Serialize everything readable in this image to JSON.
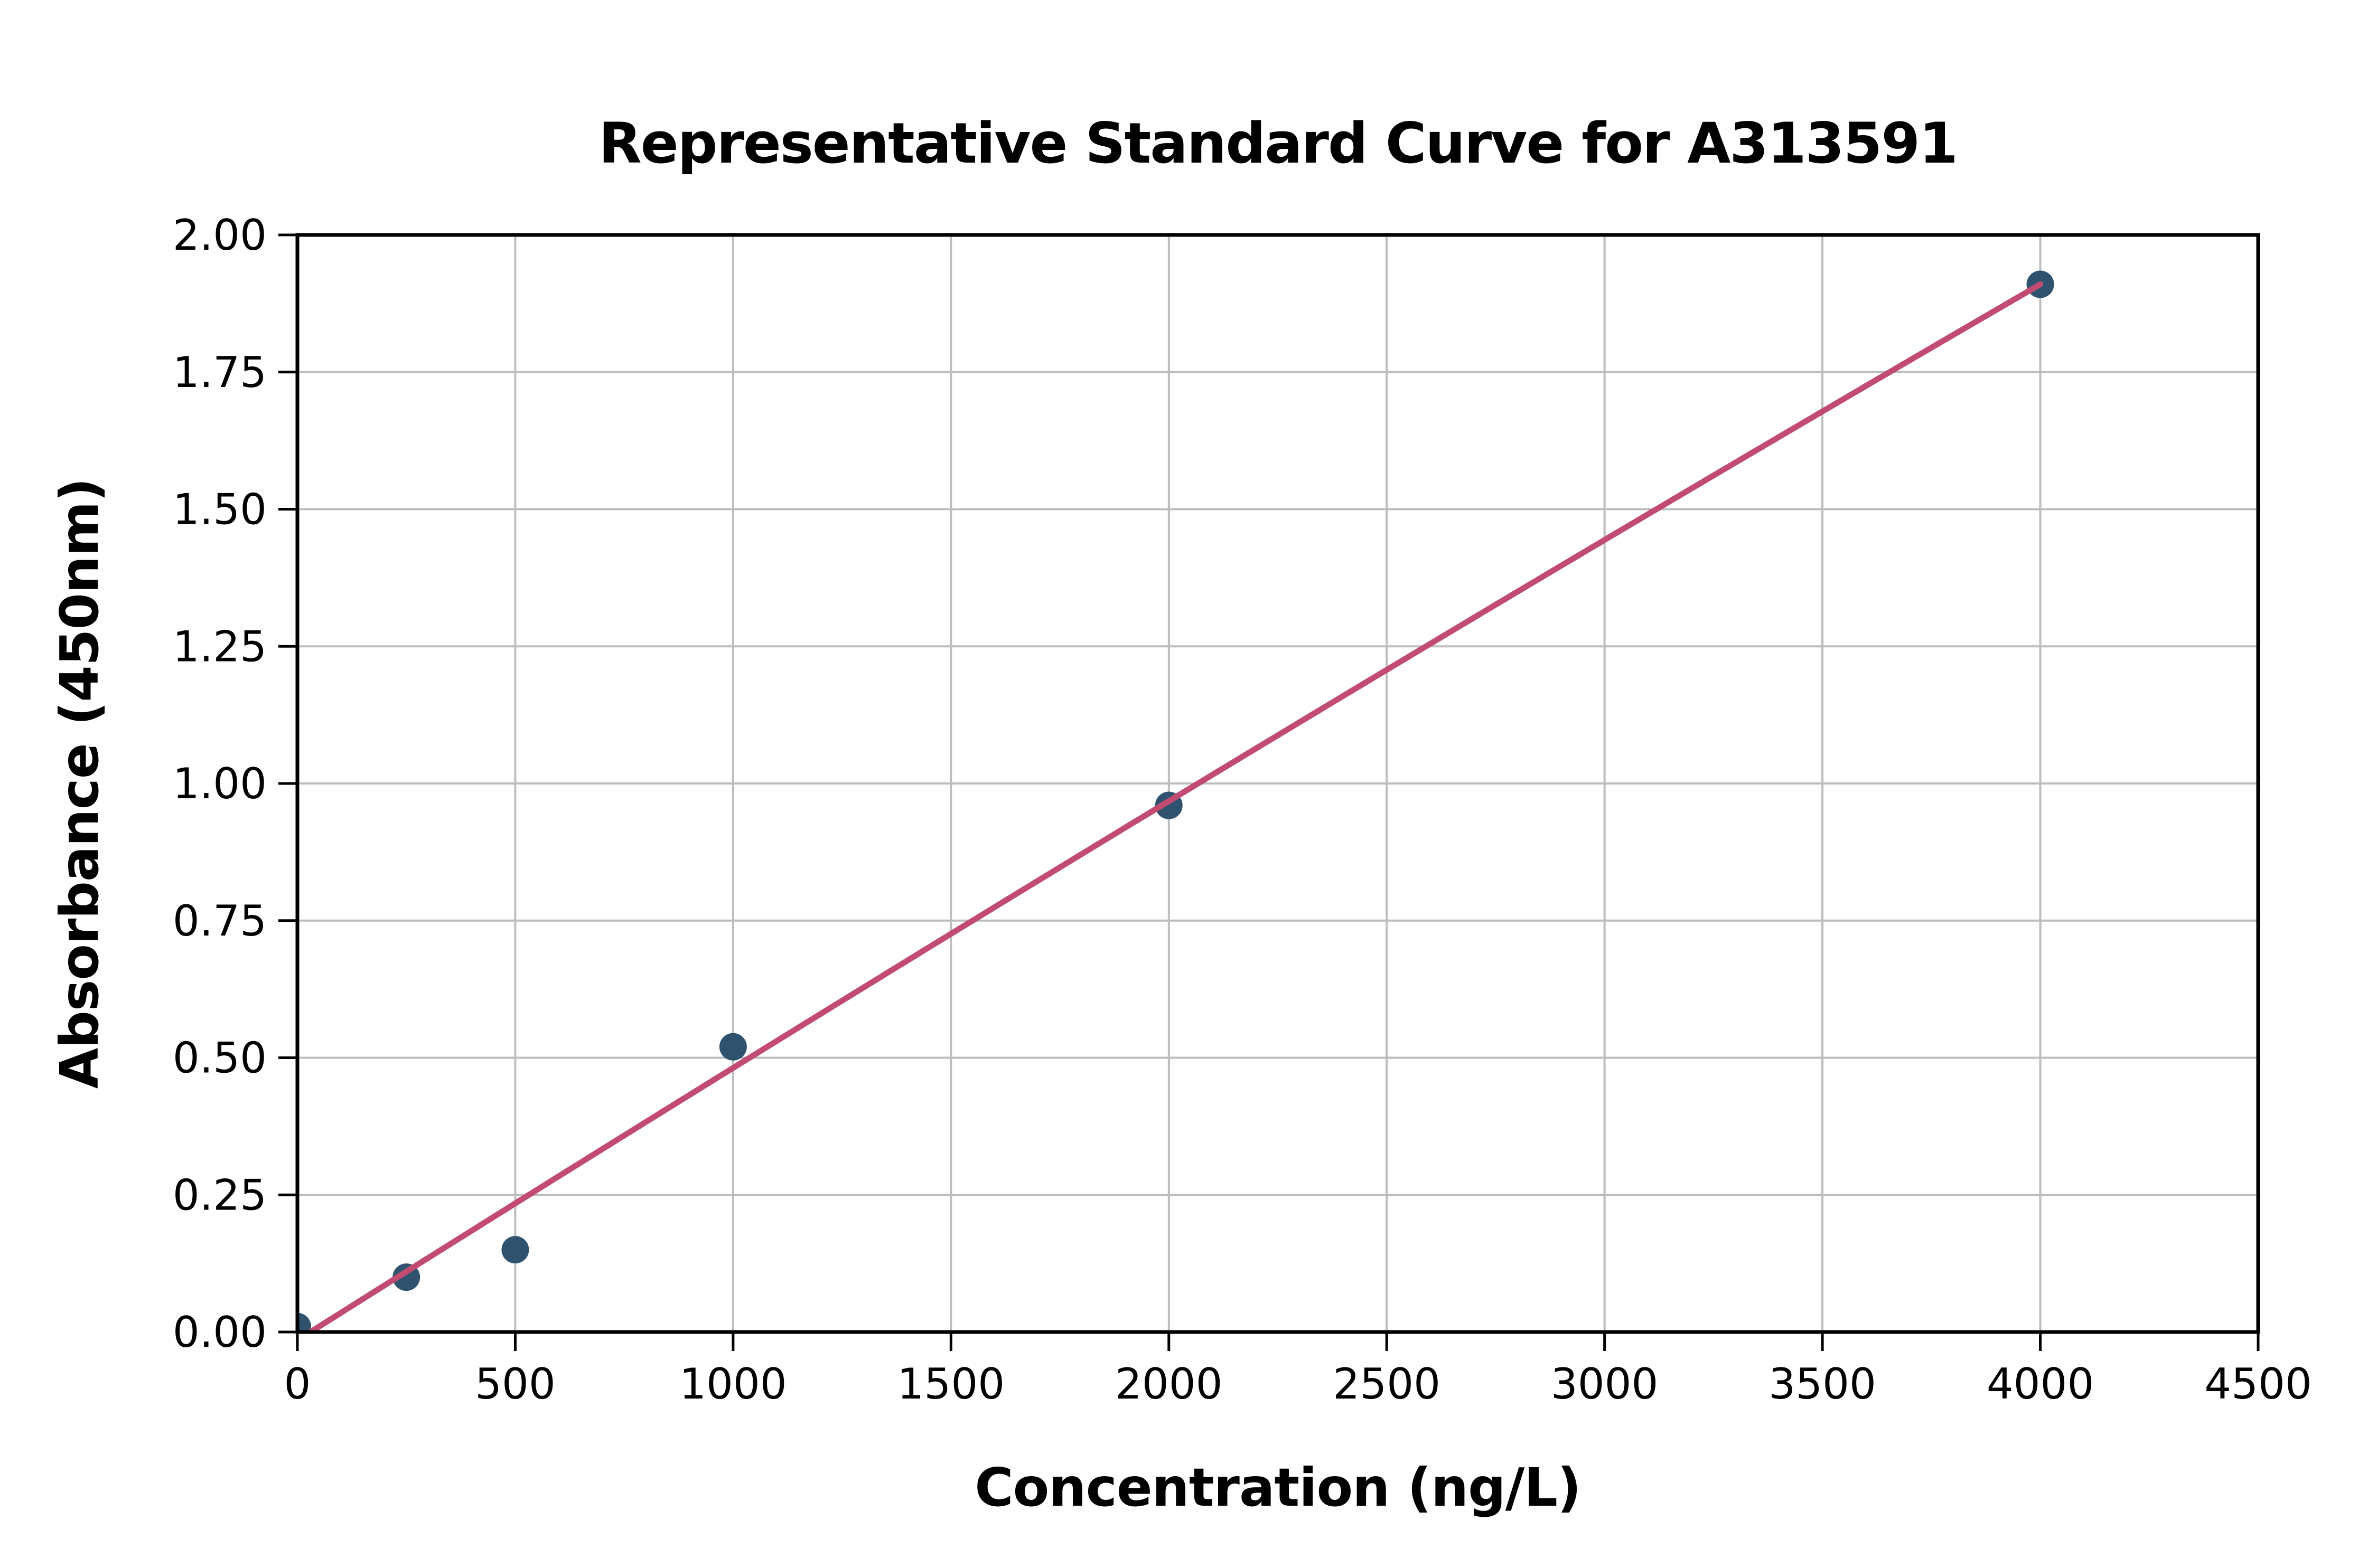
{
  "chart_data": {
    "type": "scatter",
    "title": "Representative Standard Curve for A313591",
    "xlabel": "Concentration (ng/L)",
    "ylabel": "Absorbance (450nm)",
    "xlim": [
      0,
      4500
    ],
    "ylim": [
      0,
      2.0
    ],
    "x_ticks": [
      0,
      500,
      1000,
      1500,
      2000,
      2500,
      3000,
      3500,
      4000,
      4500
    ],
    "y_ticks": [
      0.0,
      0.25,
      0.5,
      0.75,
      1.0,
      1.25,
      1.5,
      1.75,
      2.0
    ],
    "y_tick_decimals": 2,
    "grid": true,
    "legend": "none",
    "points": [
      {
        "x": 0,
        "y": 0.01
      },
      {
        "x": 250,
        "y": 0.1
      },
      {
        "x": 500,
        "y": 0.15
      },
      {
        "x": 1000,
        "y": 0.52
      },
      {
        "x": 2000,
        "y": 0.96
      },
      {
        "x": 4000,
        "y": 1.91
      }
    ],
    "fit_curve": {
      "description": "smooth regression curve from near origin to last standard",
      "through": [
        {
          "x": 30,
          "y": 0.0
        },
        {
          "x": 2015,
          "y": 0.975
        },
        {
          "x": 4000,
          "y": 1.91
        }
      ],
      "x_start": 30,
      "x_end": 4000
    },
    "colors": {
      "marker": "#2F536E",
      "line": "#C24B72",
      "grid": "#BDBDBD",
      "spine": "#000000",
      "text": "#000000",
      "background": "#FFFFFF"
    }
  }
}
